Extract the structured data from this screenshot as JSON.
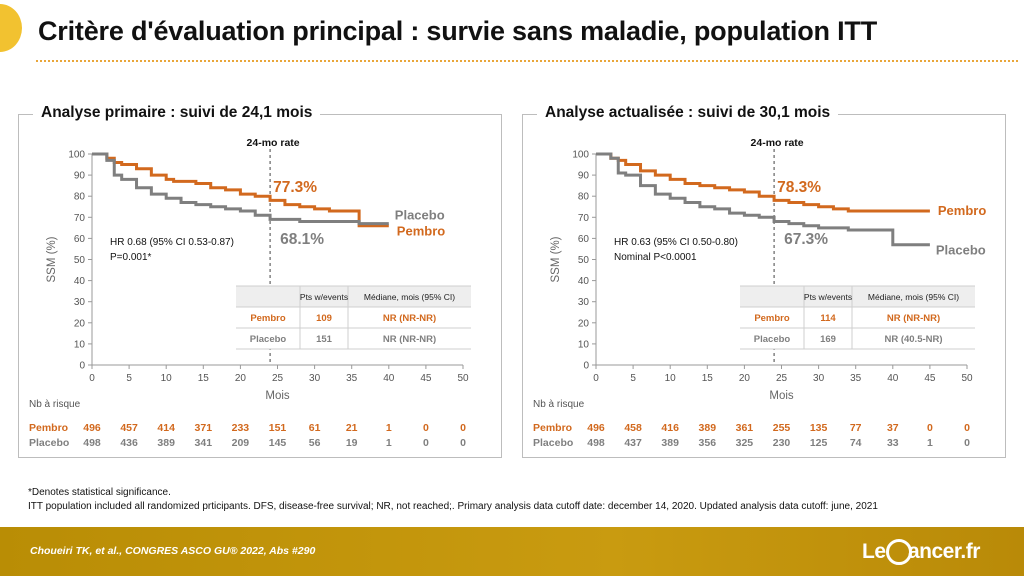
{
  "slide": {
    "title": "Critère d'évaluation principal : survie sans maladie, population ITT",
    "footnote_1": "*Denotes statistical significance.",
    "footnote_2": "ITT population included all randomized prticipants. DFS, disease-free survival; NR, not reached;. Primary analysis data cutoff date: december 14, 2020. Updated analysis data cutoff: june, 2021",
    "citation": "Choueiri TK, et al., CONGRES ASCO GU® 2022, Abs #290",
    "logo_left": "Le",
    "logo_right": "ancer.fr"
  },
  "colors": {
    "pembro": "#d2691e",
    "placebo": "#7f7f7f",
    "accent": "#f2c230"
  },
  "chart_data": [
    {
      "type": "line",
      "panel_title": "Analyse primaire : suivi de 24,1 mois",
      "xlabel": "Mois",
      "ylabel": "SSM (%)",
      "xlim": [
        0,
        50
      ],
      "ylim": [
        0,
        100
      ],
      "xticks": [
        0,
        5,
        10,
        15,
        20,
        25,
        30,
        35,
        40,
        45,
        50
      ],
      "yticks": [
        0,
        10,
        20,
        30,
        40,
        50,
        60,
        70,
        80,
        90,
        100
      ],
      "rate_line_x": 24,
      "rate_label": "24-mo rate",
      "rate_pembro": "77.3%",
      "rate_placebo": "68.1%",
      "hr_line1": "HR 0.68 (95% CI 0.53-0.87)",
      "hr_line2": "P=0.001*",
      "table": {
        "headers": [
          "",
          "Pts w/events",
          "Médiane, mois (95% CI)"
        ],
        "rows": [
          [
            "Pembro",
            "109",
            "NR (NR-NR)"
          ],
          [
            "Placebo",
            "151",
            "NR (NR-NR)"
          ]
        ]
      },
      "series": [
        {
          "name": "Pembro",
          "color": "#d2691e",
          "x": [
            0,
            2,
            3,
            4,
            6,
            8,
            10,
            11,
            14,
            16,
            18,
            20,
            22,
            24,
            26,
            28,
            30,
            32,
            34,
            36,
            40
          ],
          "y": [
            100,
            98,
            96,
            95,
            93,
            90,
            88,
            87,
            86,
            84,
            83,
            81,
            80,
            78,
            76,
            75,
            74,
            73,
            73,
            66,
            66
          ]
        },
        {
          "name": "Placebo",
          "color": "#7f7f7f",
          "x": [
            0,
            2,
            3,
            4,
            6,
            8,
            10,
            12,
            14,
            16,
            18,
            20,
            22,
            24,
            26,
            28,
            30,
            32,
            34,
            36,
            40
          ],
          "y": [
            100,
            97,
            90,
            88,
            84,
            81,
            79,
            77,
            76,
            75,
            74,
            73,
            71,
            69,
            69,
            68,
            68,
            68,
            68,
            67,
            67
          ]
        }
      ],
      "risk": {
        "label": "Nb à risque",
        "pembro": [
          "496",
          "457",
          "414",
          "371",
          "233",
          "151",
          "61",
          "21",
          "1",
          "0",
          "0"
        ],
        "placebo": [
          "498",
          "436",
          "389",
          "341",
          "209",
          "145",
          "56",
          "19",
          "1",
          "0",
          "0"
        ]
      }
    },
    {
      "type": "line",
      "panel_title": "Analyse actualisée : suivi de 30,1 mois",
      "xlabel": "Mois",
      "ylabel": "SSM (%)",
      "xlim": [
        0,
        50
      ],
      "ylim": [
        0,
        100
      ],
      "xticks": [
        0,
        5,
        10,
        15,
        20,
        25,
        30,
        35,
        40,
        45,
        50
      ],
      "yticks": [
        0,
        10,
        20,
        30,
        40,
        50,
        60,
        70,
        80,
        90,
        100
      ],
      "rate_line_x": 24,
      "rate_label": "24-mo rate",
      "rate_pembro": "78.3%",
      "rate_placebo": "67.3%",
      "hr_line1": "HR 0.63 (95% CI 0.50-0.80)",
      "hr_line2": "Nominal P<0.0001",
      "table": {
        "headers": [
          "",
          "Pts w/events",
          "Médiane, mois (95% CI)"
        ],
        "rows": [
          [
            "Pembro",
            "114",
            "NR (NR-NR)"
          ],
          [
            "Placebo",
            "169",
            "NR (40.5-NR)"
          ]
        ]
      },
      "series": [
        {
          "name": "Pembro",
          "color": "#d2691e",
          "x": [
            0,
            2,
            3,
            4,
            6,
            8,
            10,
            12,
            14,
            16,
            18,
            20,
            22,
            24,
            26,
            28,
            30,
            32,
            34,
            36,
            45
          ],
          "y": [
            100,
            98,
            97,
            95,
            92,
            90,
            88,
            86,
            85,
            84,
            83,
            82,
            80,
            78,
            77,
            76,
            75,
            74,
            73,
            73,
            73
          ]
        },
        {
          "name": "Placebo",
          "color": "#7f7f7f",
          "x": [
            0,
            2,
            3,
            4,
            6,
            8,
            10,
            12,
            14,
            16,
            18,
            20,
            22,
            24,
            26,
            28,
            30,
            32,
            34,
            36,
            40,
            45
          ],
          "y": [
            100,
            98,
            91,
            90,
            85,
            81,
            79,
            77,
            75,
            74,
            72,
            71,
            70,
            68,
            67,
            66,
            65,
            65,
            64,
            64,
            57,
            57
          ]
        }
      ],
      "risk": {
        "label": "Nb à risque",
        "pembro": [
          "496",
          "458",
          "416",
          "389",
          "361",
          "255",
          "135",
          "77",
          "37",
          "0",
          "0"
        ],
        "placebo": [
          "498",
          "437",
          "389",
          "356",
          "325",
          "230",
          "125",
          "74",
          "33",
          "1",
          "0"
        ]
      }
    }
  ]
}
